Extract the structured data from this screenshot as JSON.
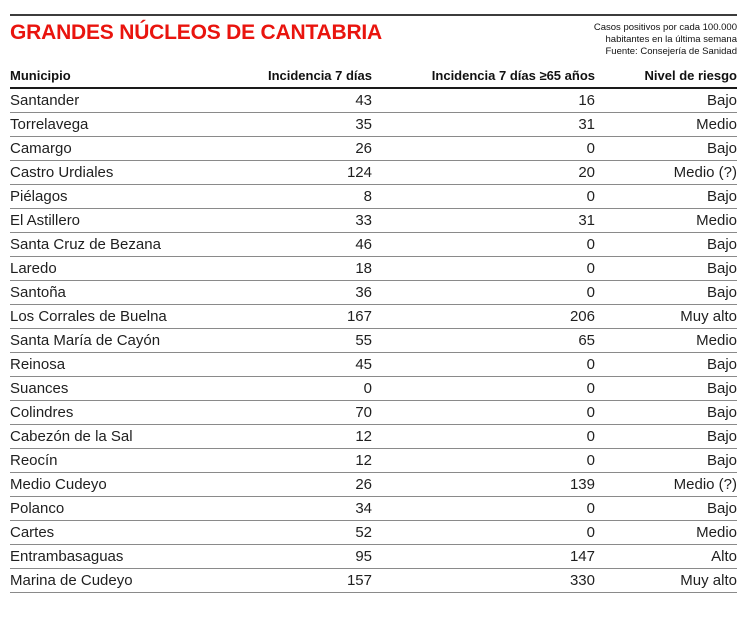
{
  "header": {
    "title": "GRANDES NÚCLEOS DE CANTABRIA",
    "note_lines": [
      "Casos positivos por cada 100.000",
      "habitantes en la última semana",
      "Fuente: Consejería de Sanidad"
    ]
  },
  "colors": {
    "title_red": "#e9140e",
    "rule_dark": "#3c3c3c",
    "row_line_gray": "#8a8a8a",
    "text": "#1f1f1f"
  },
  "chart_data": {
    "type": "table",
    "title": "GRANDES NÚCLEOS DE CANTABRIA",
    "subtitle": "Casos positivos por cada 100.000 habitantes en la última semana",
    "source": "Fuente: Consejería de Sanidad",
    "columns": [
      "Municipio",
      "Incidencia 7 días",
      "Incidencia 7 días ≥65 años",
      "Nivel de riesgo"
    ],
    "rows": [
      [
        "Santander",
        43,
        16,
        "Bajo"
      ],
      [
        "Torrelavega",
        35,
        31,
        "Medio"
      ],
      [
        "Camargo",
        26,
        0,
        "Bajo"
      ],
      [
        "Castro Urdiales",
        124,
        20,
        "Medio (?)"
      ],
      [
        "Piélagos",
        8,
        0,
        "Bajo"
      ],
      [
        "El Astillero",
        33,
        31,
        "Medio"
      ],
      [
        "Santa Cruz de Bezana",
        46,
        0,
        "Bajo"
      ],
      [
        "Laredo",
        18,
        0,
        "Bajo"
      ],
      [
        "Santoña",
        36,
        0,
        "Bajo"
      ],
      [
        "Los Corrales de Buelna",
        167,
        206,
        "Muy alto"
      ],
      [
        "Santa María de Cayón",
        55,
        65,
        "Medio"
      ],
      [
        "Reinosa",
        45,
        0,
        "Bajo"
      ],
      [
        "Suances",
        0,
        0,
        "Bajo"
      ],
      [
        "Colindres",
        70,
        0,
        "Bajo"
      ],
      [
        "Cabezón de la Sal",
        12,
        0,
        "Bajo"
      ],
      [
        "Reocín",
        12,
        0,
        "Bajo"
      ],
      [
        "Medio Cudeyo",
        26,
        139,
        "Medio (?)"
      ],
      [
        "Polanco",
        34,
        0,
        "Bajo"
      ],
      [
        "Cartes",
        52,
        0,
        "Medio"
      ],
      [
        "Entrambasaguas",
        95,
        147,
        "Alto"
      ],
      [
        "Marina de Cudeyo",
        157,
        330,
        "Muy alto"
      ]
    ]
  }
}
